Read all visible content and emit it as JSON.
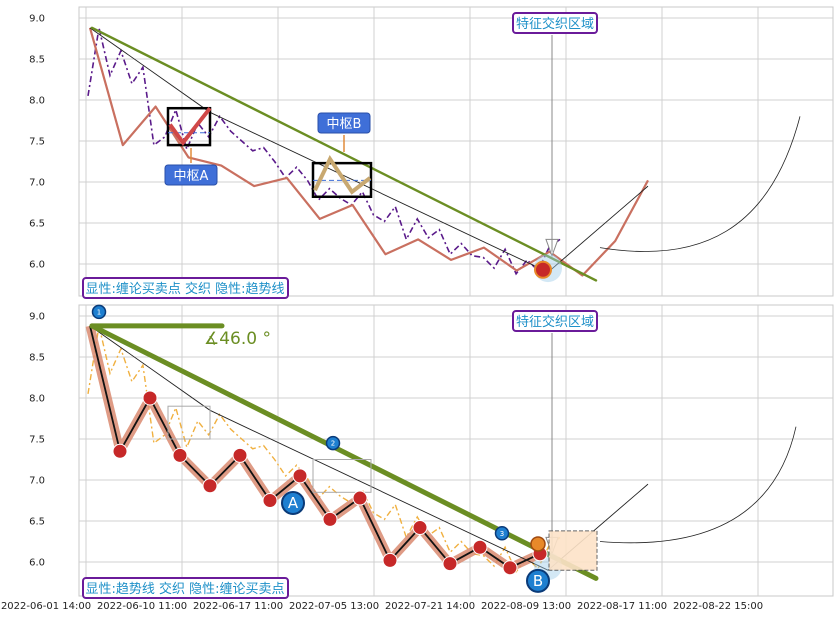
{
  "chart_data": [
    {
      "type": "line",
      "panel": "top",
      "ylim": [
        5.75,
        9.15
      ],
      "yticks": [
        "9.0",
        "8.5",
        "8.0",
        "7.5",
        "7.0",
        "6.5",
        "6.0"
      ],
      "grid": true,
      "legend_text": "显性:缠论买卖点 交织 隐性:趋势线",
      "region_label": "特征交织区域",
      "zhongshu_labels": [
        "中枢A",
        "中枢B"
      ],
      "series": [
        {
          "values": [
            8.05,
            8.88,
            8.3,
            8.6,
            8.2,
            8.4,
            7.45,
            7.55,
            7.88,
            7.4,
            7.72,
            7.55,
            7.8,
            7.62,
            7.5,
            7.38,
            7.42,
            7.25,
            7.05,
            7.18,
            7.02,
            6.78,
            6.92,
            6.8,
            6.72,
            6.88,
            6.6,
            6.52,
            6.7,
            6.3,
            6.55,
            6.32,
            6.42,
            6.12,
            6.25,
            6.1,
            6.08,
            5.95,
            6.18,
            5.88,
            6.05,
            5.92,
            6.2,
            6.3
          ]
        },
        {
          "values": [
            8.88,
            7.45,
            7.92,
            7.3,
            7.2,
            6.95,
            7.05,
            6.55,
            6.72,
            6.12,
            6.3,
            6.05,
            6.2,
            5.92,
            6.15,
            5.86,
            6.28,
            7.02
          ]
        }
      ],
      "trendline": {
        "from": 8.88,
        "to": 5.8
      }
    },
    {
      "type": "line",
      "panel": "bottom",
      "ylim": [
        5.75,
        9.15
      ],
      "yticks": [
        "9.0",
        "8.5",
        "8.0",
        "7.5",
        "7.0",
        "6.5",
        "6.0"
      ],
      "grid": true,
      "legend_text": "显性:趋势线 交织 隐性:缠论买卖点",
      "region_label": "特征交织区域",
      "angle_label": "∡46.0 °",
      "point_labels": [
        "A",
        "B"
      ],
      "marker_numbers": [
        "1",
        "2",
        "3"
      ],
      "series": [
        {
          "values": [
            8.05,
            8.88,
            8.3,
            8.6,
            8.2,
            8.4,
            7.45,
            7.55,
            7.88,
            7.4,
            7.72,
            7.55,
            7.8,
            7.62,
            7.5,
            7.38,
            7.42,
            7.25,
            7.05,
            7.18,
            7.02,
            6.78,
            6.92,
            6.8,
            6.72,
            6.88,
            6.6,
            6.52,
            6.7,
            6.3,
            6.55,
            6.32,
            6.42,
            6.12,
            6.25,
            6.1,
            6.08,
            5.95,
            6.18,
            5.88,
            6.05,
            5.92,
            6.2,
            6.3
          ]
        },
        {
          "values": [
            8.88,
            7.35,
            8.0,
            7.3,
            6.93,
            7.3,
            6.75,
            7.05,
            6.52,
            6.78,
            6.02,
            6.42,
            5.98,
            6.18,
            5.93,
            6.1
          ]
        }
      ],
      "trendline": {
        "from": 8.88,
        "to": 5.8
      }
    }
  ],
  "x_tick_labels": [
    "2022-06-01 14:00",
    "2022-06-10 11:00",
    "2022-06-17 11:00",
    "2022-07-05 13:00",
    "2022-07-21 14:00",
    "2022-08-09 13:00",
    "2022-08-17 11:00",
    "2022-08-22 15:00"
  ],
  "colors": {
    "grid": "#d0d0d0",
    "raw_price": "#5a1a8a",
    "raw_price_bottom": "#f0b040",
    "bi": "#c97060",
    "trend": "#6b8e23",
    "badge_border": "#6a1b9a",
    "badge_text": "#1e90c8",
    "zhongshu_label_bg": "#3f6fd8",
    "marker_red": "#c62828",
    "marker_blue": "#1e7fd0",
    "marker_orange": "#e8892a"
  }
}
